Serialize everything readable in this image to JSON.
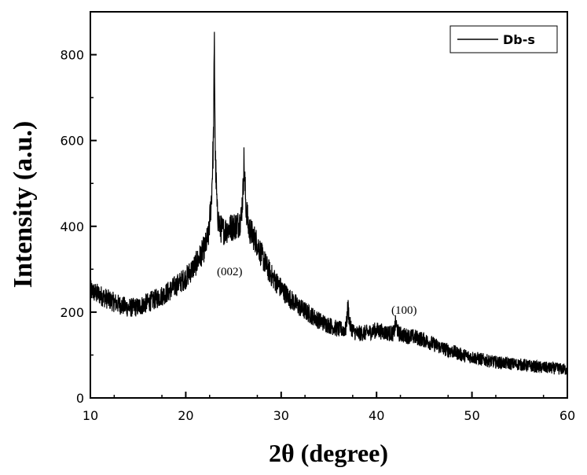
{
  "chart_data": {
    "type": "line",
    "xlabel": "2θ (degree)",
    "ylabel": "Intensity (a.u.)",
    "xlim": [
      10,
      60
    ],
    "ylim": [
      0,
      900
    ],
    "x_ticks": [
      10,
      20,
      30,
      40,
      50,
      60
    ],
    "y_ticks": [
      0,
      200,
      400,
      600,
      800
    ],
    "grid": false,
    "legend_position": "top-right",
    "series": [
      {
        "name": "Db-s",
        "color": "#000000",
        "x": [
          10,
          11,
          12,
          13,
          14,
          15,
          16,
          17,
          18,
          19,
          20,
          20.5,
          21,
          21.5,
          22,
          22.4,
          22.7,
          22.9,
          23.0,
          23.1,
          23.3,
          23.6,
          24,
          24.5,
          25,
          25.5,
          25.8,
          26.0,
          26.1,
          26.3,
          26.6,
          27,
          27.5,
          28,
          28.5,
          29,
          30,
          31,
          32,
          33,
          34,
          35,
          36,
          36.8,
          37.0,
          37.2,
          37.6,
          38,
          39,
          40,
          41,
          41.8,
          42.0,
          42.3,
          43,
          44,
          45,
          46,
          47,
          48,
          49,
          50,
          51,
          52,
          53,
          54,
          55,
          56,
          57,
          58,
          59,
          60
        ],
        "y": [
          250,
          240,
          228,
          218,
          210,
          212,
          222,
          232,
          245,
          262,
          280,
          295,
          310,
          330,
          350,
          380,
          470,
          600,
          820,
          560,
          430,
          395,
          390,
          395,
          400,
          405,
          420,
          480,
          550,
          450,
          395,
          380,
          360,
          330,
          305,
          285,
          255,
          230,
          210,
          195,
          180,
          170,
          160,
          160,
          215,
          170,
          155,
          150,
          152,
          158,
          152,
          150,
          175,
          150,
          145,
          142,
          135,
          125,
          115,
          108,
          100,
          95,
          90,
          85,
          82,
          80,
          78,
          75,
          72,
          70,
          68,
          66
        ]
      }
    ],
    "annotations": [
      "(002)",
      "(100)"
    ]
  }
}
